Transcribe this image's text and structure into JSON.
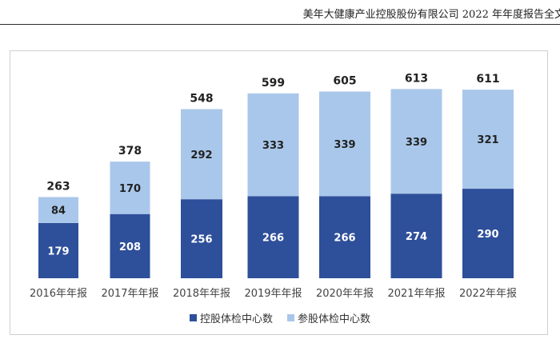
{
  "header": {
    "text": "美年大健康产业控股股份有限公司 2022 年年度报告全文"
  },
  "chart_data": {
    "type": "bar",
    "stacked": true,
    "categories": [
      "2016年年报",
      "2017年年报",
      "2018年年报",
      "2019年年报",
      "2020年年报",
      "2021年年报",
      "2022年年报"
    ],
    "series": [
      {
        "name": "控股体检中心数",
        "values": [
          179,
          208,
          256,
          266,
          266,
          274,
          290
        ],
        "color": "#2e4f9a",
        "label_color": "#ffffff"
      },
      {
        "name": "参股体检中心数",
        "values": [
          84,
          170,
          292,
          333,
          339,
          339,
          321
        ],
        "color": "#a9c7ea",
        "label_color": "#222222"
      }
    ],
    "totals": [
      263,
      378,
      548,
      599,
      605,
      613,
      611
    ],
    "legend_position": "bottom",
    "grid": false
  }
}
